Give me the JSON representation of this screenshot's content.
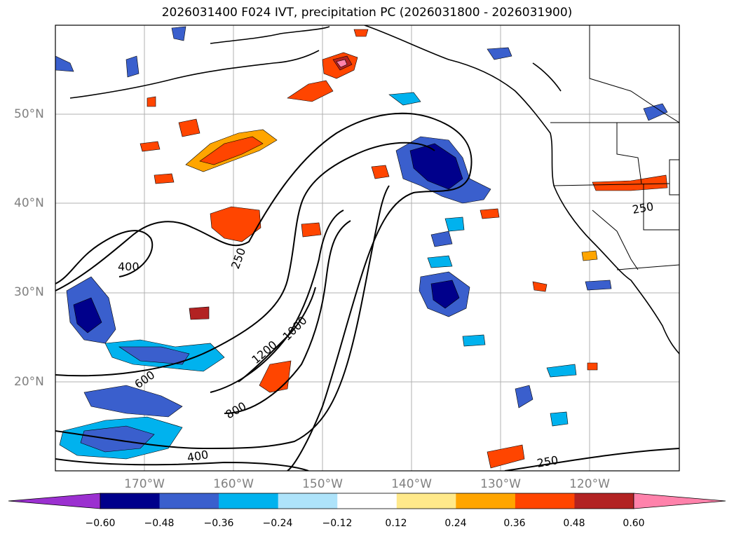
{
  "title": "2026031400 F024 IVT, precipitation PC (2026031800 - 2026031900)",
  "lat_labels": [
    "50°N",
    "40°N",
    "30°N",
    "20°N"
  ],
  "lon_labels": [
    "170°W",
    "160°W",
    "150°W",
    "140°W",
    "130°W",
    "120°W"
  ],
  "contour_labels": [
    "400",
    "250",
    "600",
    "1000",
    "1200",
    "800",
    "400",
    "250",
    "250"
  ],
  "colorbar": {
    "ticks": [
      "−0.60",
      "−0.48",
      "−0.36",
      "−0.24",
      "−0.12",
      "0.12",
      "0.24",
      "0.36",
      "0.48",
      "0.60"
    ],
    "colors": [
      "#9b30d0",
      "#00008b",
      "#3a5fcd",
      "#00b2ee",
      "#aee3fa",
      "#ffffff",
      "#ffe98a",
      "#ffa500",
      "#ff4500",
      "#b22222",
      "#ff82ab"
    ]
  },
  "colors": {
    "positive_low": "#ffe98a",
    "positive_mid": "#ffa500",
    "positive_high": "#ff4500",
    "positive_top": "#b22222",
    "negative_low": "#aee3fa",
    "negative_mid": "#00b2ee",
    "negative_high": "#3a5fcd",
    "negative_top": "#00008b"
  }
}
